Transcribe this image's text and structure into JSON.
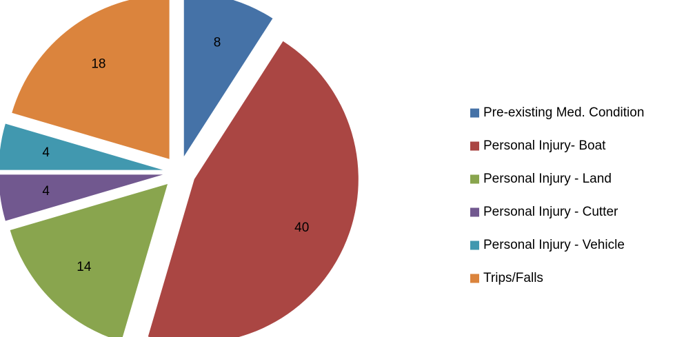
{
  "chart_data": {
    "type": "pie",
    "title": "",
    "legend_position": "right",
    "exploded": true,
    "slices": [
      {
        "label": "Pre-existing Med. Condition",
        "value": 8,
        "color": "#4572a7"
      },
      {
        "label": "Personal Injury- Boat",
        "value": 40,
        "color": "#aa4643"
      },
      {
        "label": "Personal Injury - Land",
        "value": 14,
        "color": "#89a54e"
      },
      {
        "label": "Personal Injury - Cutter",
        "value": 4,
        "color": "#71588f"
      },
      {
        "label": "Personal Injury - Vehicle",
        "value": 4,
        "color": "#4198af"
      },
      {
        "label": "Trips/Falls",
        "value": 18,
        "color": "#db843d"
      }
    ]
  }
}
